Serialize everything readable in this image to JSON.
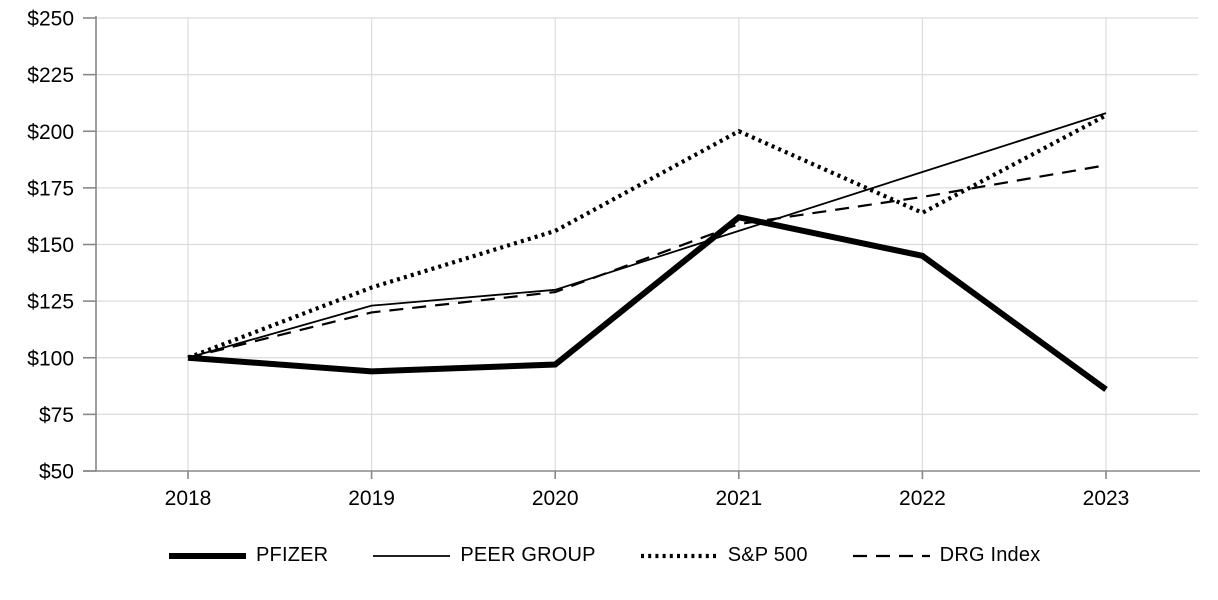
{
  "chart_data": {
    "type": "line",
    "title": "",
    "x_categories": [
      "2018",
      "2019",
      "2020",
      "2021",
      "2022",
      "2023"
    ],
    "series": [
      {
        "name": "PFIZER",
        "style": "solid-thick",
        "values": [
          100,
          94,
          97,
          162,
          145,
          86
        ]
      },
      {
        "name": "PEER GROUP",
        "style": "solid-thin",
        "values": [
          100,
          123,
          130,
          156,
          182,
          208
        ]
      },
      {
        "name": "S&P 500",
        "style": "dotted",
        "values": [
          100,
          131,
          156,
          200,
          164,
          207
        ]
      },
      {
        "name": "DRG Index",
        "style": "dashed",
        "values": [
          100,
          120,
          129,
          159,
          171,
          185
        ]
      }
    ],
    "ylim": [
      50,
      250
    ],
    "y_tick_step": 25,
    "y_tick_prefix": "$",
    "y_tick_labels": [
      "$50",
      "$75",
      "$100",
      "$125",
      "$150",
      "$175",
      "$200",
      "$225",
      "$250"
    ],
    "grid": true,
    "legend_position": "bottom",
    "line_color": "#000000",
    "axis_color": "#888888",
    "grid_color": "#dcdcdc",
    "label_color": "#000000"
  }
}
